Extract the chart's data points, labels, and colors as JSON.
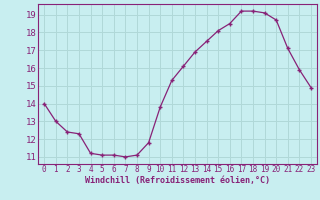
{
  "x": [
    0,
    1,
    2,
    3,
    4,
    5,
    6,
    7,
    8,
    9,
    10,
    11,
    12,
    13,
    14,
    15,
    16,
    17,
    18,
    19,
    20,
    21,
    22,
    23
  ],
  "y": [
    14.0,
    13.0,
    12.4,
    12.3,
    11.2,
    11.1,
    11.1,
    11.0,
    11.1,
    11.8,
    13.8,
    15.3,
    16.1,
    16.9,
    17.5,
    18.1,
    18.5,
    19.2,
    19.2,
    19.1,
    18.7,
    17.1,
    15.9,
    14.9
  ],
  "line_color": "#882277",
  "marker": "+",
  "bg_color": "#c8eef0",
  "grid_color": "#b0d8d8",
  "axis_color": "#882277",
  "xlabel": "Windchill (Refroidissement éolien,°C)",
  "ylim": [
    10.6,
    19.6
  ],
  "yticks": [
    11,
    12,
    13,
    14,
    15,
    16,
    17,
    18,
    19
  ],
  "xticks": [
    0,
    1,
    2,
    3,
    4,
    5,
    6,
    7,
    8,
    9,
    10,
    11,
    12,
    13,
    14,
    15,
    16,
    17,
    18,
    19,
    20,
    21,
    22,
    23
  ],
  "font_color": "#882277"
}
